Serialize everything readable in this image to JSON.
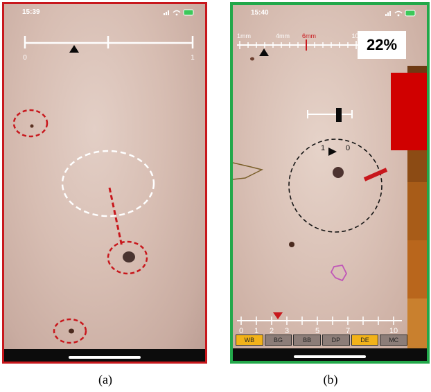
{
  "panel_a": {
    "status_time": "15:39",
    "scale_labels": [
      "0",
      "1"
    ]
  },
  "panel_b": {
    "status_time": "15:40",
    "ruler_labels": [
      "1mm",
      "4mm",
      "6mm",
      "10mm"
    ],
    "percent": "22%",
    "rotation_labels": [
      "1",
      "0"
    ],
    "bottom_scale_labels": [
      "0",
      "1",
      "2",
      "3",
      "5",
      "7",
      "10"
    ],
    "skin_buttons": [
      {
        "label": "WB",
        "selected": true
      },
      {
        "label": "BG",
        "selected": false
      },
      {
        "label": "BB",
        "selected": false
      },
      {
        "label": "DP",
        "selected": false
      },
      {
        "label": "DE",
        "selected": true
      },
      {
        "label": "MC",
        "selected": false
      }
    ],
    "tone_colors": [
      "#6e3a14",
      "#8c4b14",
      "#a85c18",
      "#b9661c",
      "#c9802e"
    ]
  },
  "captions": {
    "a": "(a)",
    "b": "(b)"
  },
  "colors": {
    "panel_a_border": "#c8171c",
    "panel_b_border": "#22a84a",
    "accent_red": "#d00000",
    "button_selected": "#f2b21a"
  }
}
